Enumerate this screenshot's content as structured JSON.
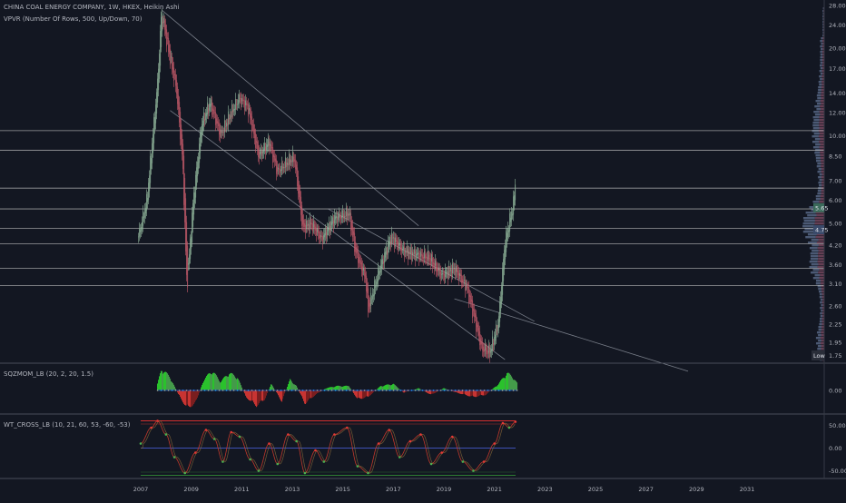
{
  "header": {
    "title": "CHINA COAL ENERGY COMPANY, 1W, HKEX, Heikin Ashi",
    "indicator": "VPVR (Number Of Rows, 500, Up/Down, 70)"
  },
  "panes": {
    "sqzmom_label": "SQZMOM_LB (20, 2, 20, 1.5)",
    "wt_label": "WT_CROSS_LB (10, 21, 60, 53, -60, -53)"
  },
  "colors": {
    "background": "#131722",
    "up_candle": "#8fb39a",
    "down_candle": "#c45a6a",
    "hline": "#c9c9c9",
    "sqz_up": "#4caf50",
    "sqz_up_bright": "#2ede2e",
    "sqz_down": "#e53935",
    "sqz_down_dark": "#8b1f1f",
    "vpvr_up": "#5a6a8a",
    "vpvr_down": "#7a4a62",
    "wt_line": "#c0392b",
    "wt_ob": "#d32f2f",
    "wt_os": "#2e7d32",
    "wt_zero": "#3f51b5"
  },
  "chart_data": {
    "type": "candlestick",
    "symbol": "CHINA COAL ENERGY COMPANY",
    "interval": "1W",
    "price_scale": "log",
    "price_ticks": [
      "28.00",
      "24.00",
      "20.00",
      "17.00",
      "14.00",
      "12.00",
      "10.00",
      "8.50",
      "7.00",
      "6.00",
      "5.00",
      "4.20",
      "3.60",
      "3.10",
      "2.60",
      "2.25",
      "1.95"
    ],
    "last_price_label": "5.65",
    "second_price_label": "4.75",
    "low_label": "Low",
    "low_value": "1.75",
    "horizontal_levels": [
      10.4,
      8.9,
      6.6,
      5.6,
      4.8,
      4.25,
      3.5,
      3.05
    ],
    "trendlines": [
      {
        "from": [
          "2007-11",
          27.0
        ],
        "to": [
          "2018-01",
          4.9
        ]
      },
      {
        "from": [
          "2008-03",
          12.2
        ],
        "to": [
          "2021-06",
          1.7
        ]
      },
      {
        "from": [
          "2014-06",
          5.6
        ],
        "to": [
          "2022-08",
          2.3
        ]
      },
      {
        "from": [
          "2019-06",
          2.75
        ],
        "to": [
          "2028-09",
          1.55
        ]
      }
    ],
    "x_ticks": [
      "2007",
      "2009",
      "2011",
      "2013",
      "2015",
      "2017",
      "2019",
      "2021",
      "2023",
      "2025",
      "2027",
      "2029",
      "2031"
    ],
    "price_path": [
      [
        "2006-12",
        4.5
      ],
      [
        "2007-04",
        6.0
      ],
      [
        "2007-09",
        15.0
      ],
      [
        "2007-11",
        27.0
      ],
      [
        "2008-02",
        20.0
      ],
      [
        "2008-06",
        14.5
      ],
      [
        "2008-09",
        8.0
      ],
      [
        "2008-11",
        3.0
      ],
      [
        "2009-02",
        6.0
      ],
      [
        "2009-06",
        11.0
      ],
      [
        "2009-10",
        13.0
      ],
      [
        "2010-03",
        10.0
      ],
      [
        "2010-08",
        12.0
      ],
      [
        "2010-12",
        13.5
      ],
      [
        "2011-04",
        12.5
      ],
      [
        "2011-09",
        8.5
      ],
      [
        "2012-02",
        9.5
      ],
      [
        "2012-06",
        7.5
      ],
      [
        "2012-10",
        8.0
      ],
      [
        "2013-02",
        8.4
      ],
      [
        "2013-06",
        4.8
      ],
      [
        "2013-10",
        5.0
      ],
      [
        "2014-03",
        4.4
      ],
      [
        "2014-09",
        5.2
      ],
      [
        "2015-04",
        5.4
      ],
      [
        "2015-07",
        4.0
      ],
      [
        "2015-12",
        3.2
      ],
      [
        "2016-01",
        2.5
      ],
      [
        "2016-06",
        3.4
      ],
      [
        "2016-12",
        4.5
      ],
      [
        "2017-06",
        4.0
      ],
      [
        "2017-12",
        3.9
      ],
      [
        "2018-06",
        3.8
      ],
      [
        "2018-12",
        3.3
      ],
      [
        "2019-06",
        3.5
      ],
      [
        "2019-12",
        3.0
      ],
      [
        "2020-04",
        2.3
      ],
      [
        "2020-07",
        1.85
      ],
      [
        "2020-11",
        1.8
      ],
      [
        "2021-03",
        2.3
      ],
      [
        "2021-06",
        4.3
      ],
      [
        "2021-08",
        5.0
      ],
      [
        "2021-10",
        5.8
      ],
      [
        "2021-11",
        6.9
      ]
    ],
    "sqzmom": {
      "zero_label": "0.00",
      "series": [
        [
          "2007-09",
          3
        ],
        [
          "2007-11",
          10
        ],
        [
          "2008-03",
          6
        ],
        [
          "2008-07",
          -2
        ],
        [
          "2008-11",
          -8
        ],
        [
          "2009-03",
          -6
        ],
        [
          "2009-07",
          5
        ],
        [
          "2009-11",
          9
        ],
        [
          "2010-03",
          4
        ],
        [
          "2010-07",
          8
        ],
        [
          "2010-11",
          6
        ],
        [
          "2011-03",
          -3
        ],
        [
          "2011-08",
          -7
        ],
        [
          "2011-12",
          -4
        ],
        [
          "2012-03",
          3
        ],
        [
          "2012-08",
          -5
        ],
        [
          "2012-12",
          5
        ],
        [
          "2013-03",
          2
        ],
        [
          "2013-07",
          -6
        ],
        [
          "2013-12",
          -2
        ],
        [
          "2014-05",
          1
        ],
        [
          "2014-10",
          2
        ],
        [
          "2015-04",
          2
        ],
        [
          "2015-08",
          -4
        ],
        [
          "2016-01",
          -3
        ],
        [
          "2016-07",
          2
        ],
        [
          "2017-01",
          3
        ],
        [
          "2017-06",
          -1
        ],
        [
          "2018-01",
          1
        ],
        [
          "2018-07",
          -2
        ],
        [
          "2019-01",
          1
        ],
        [
          "2019-07",
          -1
        ],
        [
          "2020-03",
          -3
        ],
        [
          "2020-09",
          -2
        ],
        [
          "2021-03",
          3
        ],
        [
          "2021-07",
          8
        ],
        [
          "2021-10",
          6
        ],
        [
          "2021-12",
          3
        ]
      ]
    },
    "wt_cross": {
      "ticks": [
        "50.00",
        "0.00",
        "-50.00"
      ],
      "levels": [
        60,
        53,
        -60,
        -53
      ],
      "series": [
        [
          "2007-01",
          10
        ],
        [
          "2007-06",
          45
        ],
        [
          "2007-09",
          60
        ],
        [
          "2008-01",
          30
        ],
        [
          "2008-05",
          -20
        ],
        [
          "2008-10",
          -55
        ],
        [
          "2009-03",
          -10
        ],
        [
          "2009-08",
          40
        ],
        [
          "2009-12",
          20
        ],
        [
          "2010-04",
          -30
        ],
        [
          "2010-08",
          35
        ],
        [
          "2010-12",
          25
        ],
        [
          "2011-05",
          -25
        ],
        [
          "2011-09",
          -50
        ],
        [
          "2012-02",
          10
        ],
        [
          "2012-06",
          -35
        ],
        [
          "2012-11",
          30
        ],
        [
          "2013-03",
          15
        ],
        [
          "2013-07",
          -55
        ],
        [
          "2013-12",
          -5
        ],
        [
          "2014-04",
          -30
        ],
        [
          "2014-09",
          30
        ],
        [
          "2015-03",
          45
        ],
        [
          "2015-08",
          -40
        ],
        [
          "2016-01",
          -55
        ],
        [
          "2016-06",
          10
        ],
        [
          "2016-11",
          40
        ],
        [
          "2017-04",
          -20
        ],
        [
          "2017-09",
          15
        ],
        [
          "2018-02",
          30
        ],
        [
          "2018-07",
          -35
        ],
        [
          "2018-12",
          -10
        ],
        [
          "2019-05",
          25
        ],
        [
          "2019-10",
          -30
        ],
        [
          "2020-03",
          -50
        ],
        [
          "2020-08",
          -30
        ],
        [
          "2021-01",
          10
        ],
        [
          "2021-05",
          55
        ],
        [
          "2021-08",
          45
        ],
        [
          "2021-11",
          58
        ]
      ]
    }
  }
}
